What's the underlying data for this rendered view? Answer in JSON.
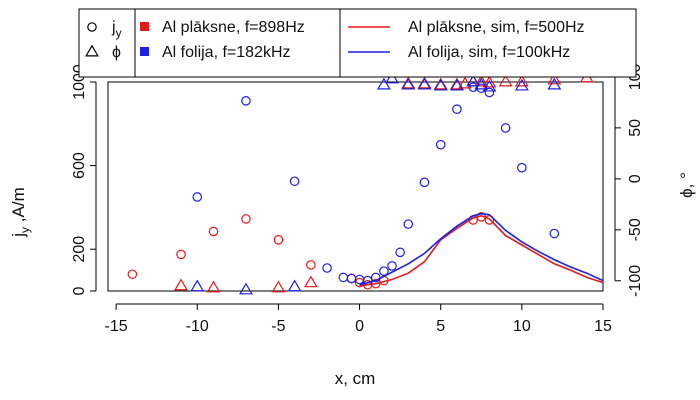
{
  "chart_data": {
    "type": "scatter",
    "title": "",
    "xlabel": "x, cm",
    "ylabel": "j_y ,A/m",
    "ylabel_main": "j",
    "ylabel_sub": "y",
    "ylabel_rest": " ,A/m",
    "y2label": "ϕ, °",
    "xlim": [
      -15.5,
      15
    ],
    "ylim": [
      0,
      1000
    ],
    "y2lim": [
      -110,
      95
    ],
    "xticks": [
      -15,
      -10,
      -5,
      0,
      5,
      10,
      15
    ],
    "yticks": [
      0,
      200,
      600,
      1000
    ],
    "y2ticks": [
      -100,
      -50,
      0,
      50,
      100
    ],
    "grid": false,
    "legend_position": "top (outside plot)",
    "legend": {
      "symbols": [
        {
          "label_main": "j",
          "label_sub": "y",
          "icon": "open-circle"
        },
        {
          "label_main": "ϕ",
          "label_sub": "",
          "icon": "open-triangle"
        }
      ],
      "colors": [
        {
          "label": "Al plāksne, f=898Hz",
          "color": "#e31a1c"
        },
        {
          "label": "Al folija, f=182kHz",
          "color": "#1f1fe0"
        }
      ],
      "lines": [
        {
          "label": "Al plāksne, sim, f=500Hz",
          "color": "#e31a1c"
        },
        {
          "label": "Al folija, sim, f=100kHz",
          "color": "#1f1fe0"
        }
      ]
    },
    "series": [
      {
        "name": "Al plāksne, f=898Hz",
        "quantity": "j_y",
        "marker": "circle",
        "axis": "left",
        "color": "#e31a1c",
        "points": [
          [
            -14,
            80
          ],
          [
            -11,
            175
          ],
          [
            -9,
            285
          ],
          [
            -7,
            345
          ],
          [
            -5,
            245
          ],
          [
            -3,
            125
          ],
          [
            -0.5,
            60
          ],
          [
            0,
            40
          ],
          [
            0.5,
            30
          ],
          [
            1,
            35
          ],
          [
            1.5,
            50
          ],
          [
            7,
            340
          ],
          [
            7.5,
            355
          ],
          [
            8,
            340
          ]
        ]
      },
      {
        "name": "Al folija, f=182kHz",
        "quantity": "j_y",
        "marker": "circle",
        "axis": "left",
        "color": "#1f1fe0",
        "points": [
          [
            -10,
            450
          ],
          [
            -7,
            910
          ],
          [
            -4,
            525
          ],
          [
            -2,
            110
          ],
          [
            -1,
            65
          ],
          [
            -0.5,
            60
          ],
          [
            0,
            55
          ],
          [
            0.5,
            50
          ],
          [
            1,
            65
          ],
          [
            1.5,
            95
          ],
          [
            2,
            120
          ],
          [
            2.5,
            185
          ],
          [
            3,
            320
          ],
          [
            4,
            520
          ],
          [
            5,
            700
          ],
          [
            6,
            870
          ],
          [
            7,
            975
          ],
          [
            7.5,
            970
          ],
          [
            8,
            950
          ],
          [
            9,
            780
          ],
          [
            10,
            590
          ],
          [
            12,
            275
          ]
        ]
      },
      {
        "name": "Al plāksne, f=898Hz",
        "quantity": "phi",
        "marker": "triangle",
        "axis": "right",
        "color": "#e31a1c",
        "points": [
          [
            -11,
            -105
          ],
          [
            -9,
            -107
          ],
          [
            -5,
            -107
          ],
          [
            -3,
            -102
          ],
          [
            3,
            93
          ],
          [
            4,
            93
          ],
          [
            5,
            92
          ],
          [
            6,
            92
          ],
          [
            6.5,
            93
          ],
          [
            7,
            95
          ],
          [
            7.5,
            95
          ],
          [
            8,
            94
          ],
          [
            9,
            95
          ],
          [
            10,
            95
          ],
          [
            12,
            97
          ],
          [
            14,
            99
          ]
        ]
      },
      {
        "name": "Al folija, f=182kHz",
        "quantity": "phi",
        "marker": "triangle",
        "axis": "right",
        "color": "#1f1fe0",
        "points": [
          [
            -10,
            -106
          ],
          [
            -7,
            -109
          ],
          [
            -4,
            -106
          ],
          [
            1.5,
            92
          ],
          [
            2,
            98
          ],
          [
            3,
            92
          ],
          [
            4,
            92
          ],
          [
            5,
            91
          ],
          [
            6,
            91
          ],
          [
            7,
            95
          ],
          [
            7.5,
            92
          ],
          [
            8,
            90
          ],
          [
            10,
            91
          ],
          [
            12,
            92
          ]
        ]
      },
      {
        "name": "Al plāksne, sim, f=500Hz",
        "type": "line",
        "axis": "left",
        "color": "#e31a1c",
        "x": [
          0,
          1,
          2,
          3,
          4,
          5,
          6,
          7,
          7.5,
          8,
          9,
          10,
          11,
          12,
          13,
          14,
          15
        ],
        "y": [
          25,
          35,
          55,
          85,
          140,
          245,
          300,
          350,
          360,
          345,
          265,
          220,
          175,
          130,
          100,
          65,
          40
        ]
      },
      {
        "name": "Al folija, sim, f=100kHz",
        "type": "line",
        "axis": "left",
        "color": "#1f1fe0",
        "x": [
          0,
          1,
          2,
          3,
          4,
          5,
          6,
          7,
          7.5,
          8,
          9,
          10,
          11,
          12,
          13,
          14,
          15
        ],
        "y": [
          30,
          50,
          90,
          130,
          180,
          250,
          310,
          360,
          370,
          365,
          290,
          235,
          190,
          150,
          115,
          85,
          50
        ]
      }
    ]
  }
}
